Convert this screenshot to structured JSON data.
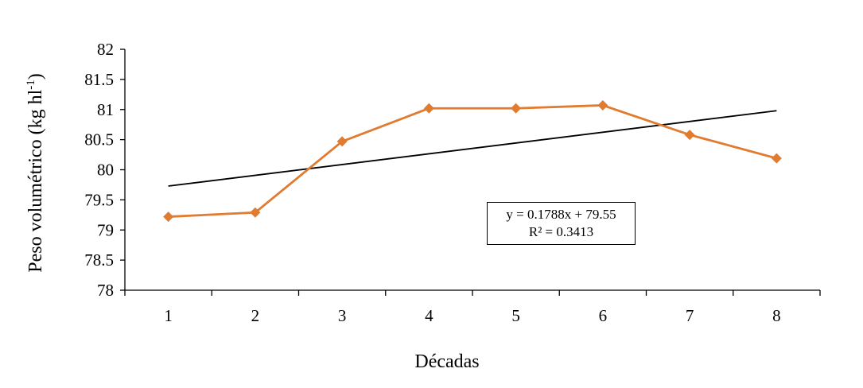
{
  "chart_data": {
    "type": "line",
    "title": "",
    "xlabel": "Décadas",
    "ylabel": "Peso volumétrico (kg hl",
    "ylabel_superscript": "-1",
    "ylabel_suffix": ")",
    "categories": [
      "1",
      "2",
      "3",
      "4",
      "5",
      "6",
      "7",
      "8"
    ],
    "x": [
      1,
      2,
      3,
      4,
      5,
      6,
      7,
      8
    ],
    "ylim": [
      78,
      82
    ],
    "yticks": [
      "78",
      "78.5",
      "79",
      "79.5",
      "80",
      "80.5",
      "81",
      "81.5",
      "82"
    ],
    "series": [
      {
        "values": [
          79.22,
          79.29,
          80.47,
          81.02,
          81.02,
          81.07,
          80.58,
          80.19
        ],
        "color": "#e07b30",
        "marker": "diamond"
      }
    ],
    "trendline": {
      "type": "linear",
      "slope": 0.1788,
      "intercept": 79.55,
      "color": "#000000"
    },
    "annotation": {
      "equation": "y = 0.1788x + 79.55",
      "r_squared": "R² = 0.3413"
    },
    "grid": false,
    "legend": "none"
  }
}
